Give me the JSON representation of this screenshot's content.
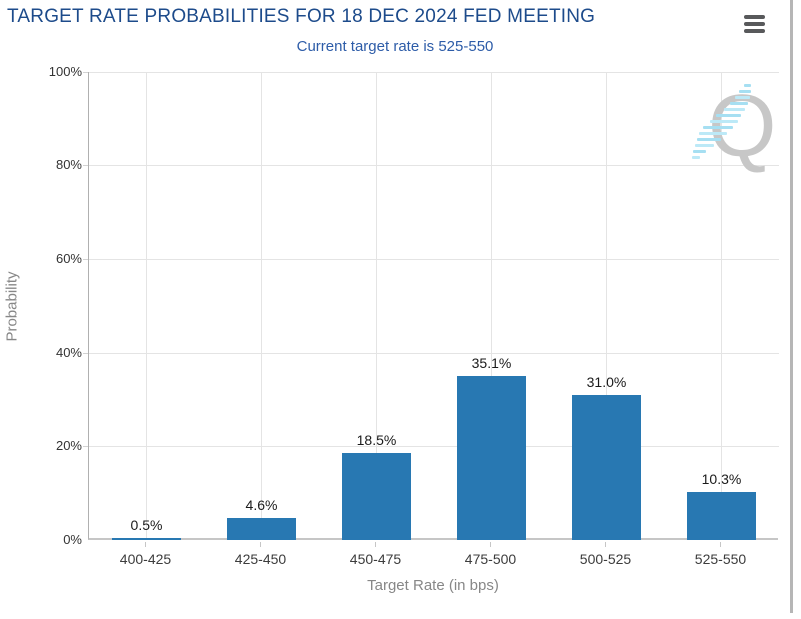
{
  "header": {
    "title": "TARGET RATE PROBABILITIES FOR 18 DEC 2024 FED MEETING",
    "menu_icon": "hamburger-menu-icon"
  },
  "subtitle": "Current target rate is 525-550",
  "watermark_letter": "Q",
  "chart_data": {
    "type": "bar",
    "title": "TARGET RATE PROBABILITIES FOR 18 DEC 2024 FED MEETING",
    "subtitle": "Current target rate is 525-550",
    "categories": [
      "400-425",
      "425-450",
      "450-475",
      "475-500",
      "500-525",
      "525-550"
    ],
    "values": [
      0.5,
      4.6,
      18.5,
      35.1,
      31.0,
      10.3
    ],
    "value_labels": [
      "0.5%",
      "4.6%",
      "18.5%",
      "35.1%",
      "31.0%",
      "10.3%"
    ],
    "xlabel": "Target Rate (in bps)",
    "ylabel": "Probability",
    "ylim": [
      0,
      100
    ],
    "yticks": [
      "100%",
      "80%",
      "60%",
      "40%",
      "20%",
      "0%"
    ],
    "grid": true,
    "legend": "none",
    "bar_color": "#2878b2"
  }
}
